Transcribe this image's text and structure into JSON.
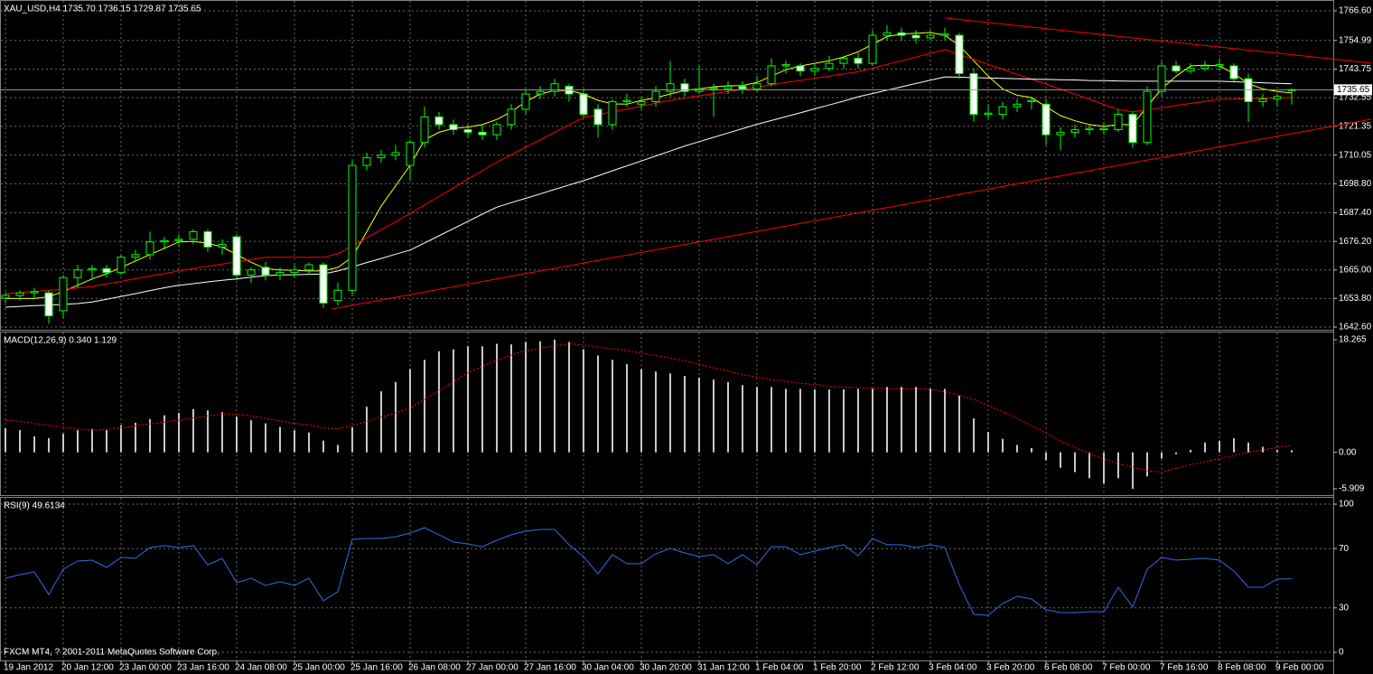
{
  "chart_data": [
    {
      "type": "candlestick",
      "title": "XAU_USD,H4 1735.70 1736.15 1729.87 1735.65",
      "categories": [
        "19 Jan 2012",
        null,
        null,
        null,
        "20 Jan 12:00",
        null,
        null,
        null,
        "23 Jan 00:00",
        null,
        null,
        null,
        "23 Jan 16:00",
        null,
        null,
        null,
        "24 Jan 08:00",
        null,
        null,
        null,
        "25 Jan 00:00",
        null,
        null,
        null,
        "25 Jan 16:00",
        null,
        null,
        null,
        "26 Jan 08:00",
        null,
        null,
        null,
        "27 Jan 00:00",
        null,
        null,
        null,
        "27 Jan 16:00",
        null,
        null,
        null,
        "30 Jan 04:00",
        null,
        null,
        null,
        "30 Jan 20:00",
        null,
        null,
        null,
        "31 Jan 12:00",
        null,
        null,
        null,
        "1 Feb 04:00",
        null,
        null,
        null,
        "1 Feb 20:00",
        null,
        null,
        null,
        "2 Feb 12:00",
        null,
        null,
        null,
        "3 Feb 04:00",
        null,
        null,
        null,
        "3 Feb 20:00",
        null,
        null,
        null,
        "6 Feb 08:00",
        null,
        null,
        null,
        "7 Feb 00:00",
        null,
        null,
        null,
        "7 Feb 16:00",
        null,
        null,
        null,
        "8 Feb 08:00",
        null,
        null,
        null,
        "9 Feb 00:00",
        null
      ],
      "open": [
        1654,
        1655,
        1656,
        1656,
        1649,
        1662,
        1665,
        1665.5,
        1664,
        1670,
        1671,
        1676,
        1676.5,
        1677,
        1680,
        1674,
        1678,
        1663,
        1666,
        1663,
        1664,
        1665,
        1667,
        1653,
        1657,
        1706,
        1709,
        1710,
        1706,
        1715,
        1725,
        1722,
        1720,
        1719,
        1718,
        1722,
        1728,
        1734,
        1735,
        1737,
        1734,
        1728,
        1722,
        1731,
        1730,
        1731,
        1735,
        1738,
        1735,
        1736,
        1736,
        1737,
        1736,
        1738,
        1745,
        1745,
        1743,
        1744,
        1746,
        1748,
        1746,
        1757,
        1758,
        1757,
        1756,
        1757,
        1757,
        1742,
        1726,
        1726,
        1729,
        1731,
        1730,
        1718,
        1719,
        1720,
        1720,
        1720,
        1726,
        1715,
        1735,
        1745,
        1743,
        1744,
        1745,
        1745,
        1740,
        1731,
        1732,
        1735.7
      ],
      "high": [
        1656,
        1657,
        1658,
        1657,
        1663,
        1667,
        1667,
        1667,
        1671,
        1673,
        1680,
        1678,
        1679,
        1681,
        1681,
        1677,
        1679,
        1666,
        1668,
        1666,
        1667,
        1668,
        1668,
        1660,
        1708,
        1711,
        1712,
        1714,
        1716,
        1729,
        1727,
        1724,
        1722,
        1722,
        1723,
        1730,
        1736,
        1737,
        1740,
        1738,
        1736,
        1730,
        1732,
        1734,
        1733,
        1737,
        1747,
        1740,
        1745,
        1738,
        1739,
        1739,
        1741,
        1748,
        1747,
        1746,
        1746,
        1749,
        1749,
        1750,
        1759,
        1761,
        1760,
        1759,
        1759,
        1760,
        1758,
        1744,
        1730,
        1731,
        1732,
        1733,
        1732,
        1721,
        1722,
        1722,
        1723,
        1728,
        1727,
        1737,
        1747,
        1747,
        1746,
        1747,
        1748,
        1746,
        1742,
        1734,
        1734,
        1736.15
      ],
      "low": [
        1652,
        1653,
        1654,
        1644,
        1646,
        1658,
        1661,
        1662,
        1663,
        1668,
        1669,
        1673,
        1674,
        1675,
        1672,
        1671,
        1661,
        1660,
        1661,
        1661,
        1662,
        1663,
        1650,
        1651,
        1655,
        1704,
        1707,
        1708,
        1700,
        1713,
        1720,
        1718,
        1717,
        1716,
        1716,
        1720,
        1726,
        1732,
        1733,
        1731,
        1725,
        1717,
        1720,
        1729,
        1728,
        1729,
        1733,
        1733,
        1734,
        1725,
        1734,
        1734,
        1735,
        1737,
        1742,
        1741,
        1741,
        1743,
        1744,
        1744,
        1745,
        1755,
        1755,
        1754,
        1755,
        1755,
        1740,
        1723,
        1724,
        1724,
        1727,
        1728,
        1714,
        1712,
        1717,
        1718,
        1718,
        1719,
        1713,
        1714,
        1733,
        1742,
        1742,
        1743,
        1743,
        1739,
        1723,
        1729,
        1729,
        1729.87
      ],
      "close": [
        1655,
        1656,
        1656.5,
        1647,
        1662,
        1665,
        1665.5,
        1664,
        1670,
        1671,
        1676,
        1676.5,
        1677,
        1680,
        1674,
        1675,
        1663,
        1665,
        1663,
        1664,
        1665,
        1667,
        1652,
        1657,
        1706,
        1709,
        1710,
        1711,
        1715,
        1725,
        1722,
        1720,
        1719,
        1718,
        1722,
        1728,
        1734,
        1735,
        1738,
        1734,
        1726,
        1722,
        1731,
        1731.5,
        1731,
        1735,
        1738,
        1735,
        1736,
        1736.5,
        1737,
        1736,
        1738,
        1745,
        1745.5,
        1743,
        1744,
        1746,
        1748,
        1746,
        1757,
        1758,
        1757,
        1756,
        1757,
        1757.5,
        1742,
        1726,
        1726.5,
        1729,
        1730,
        1731.5,
        1718,
        1719,
        1720,
        1720.5,
        1720.5,
        1726,
        1715,
        1735,
        1745,
        1743,
        1744,
        1745,
        1745.5,
        1740,
        1731,
        1732,
        1733,
        1735.65
      ],
      "up_color": "#000000",
      "down_color": "#ffffff",
      "wick_color": "#00ff00",
      "series": [
        {
          "color": "#ffff00",
          "values": [
            1653.8,
            1653.8,
            1653.8,
            1654.5,
            1656.5,
            1659,
            1661.5,
            1663.5,
            1666,
            1668.5,
            1671,
            1673.5,
            1676,
            1676.2,
            1675.5,
            1674,
            1671,
            1668,
            1665.5,
            1665,
            1664.8,
            1664.6,
            1664.6,
            1666,
            1670,
            1680,
            1690,
            1698,
            1706,
            1716,
            1719,
            1720.5,
            1721,
            1722,
            1724,
            1727,
            1731,
            1734,
            1735.4,
            1735.4,
            1734,
            1731.5,
            1730.1,
            1730,
            1731.5,
            1732.5,
            1734,
            1735.4,
            1736,
            1736.8,
            1737.2,
            1737.3,
            1738.5,
            1741,
            1743.5,
            1745,
            1746,
            1747,
            1748.5,
            1750.5,
            1753.5,
            1756.5,
            1757.5,
            1757.8,
            1758.1,
            1757,
            1753,
            1747,
            1741,
            1736,
            1733.5,
            1732.6,
            1729,
            1725.5,
            1723.5,
            1722,
            1721.3,
            1722,
            1722,
            1729,
            1736,
            1741,
            1745,
            1745.3,
            1745,
            1742,
            1738,
            1736,
            1735,
            1734.4
          ]
        },
        {
          "color": "#ff0000",
          "values": [
            1655.7,
            1656.1,
            1656.6,
            1657.0,
            1657.4,
            1657.9,
            1658.5,
            1659.5,
            1660.5,
            1661.6,
            1662.6,
            1663.6,
            1664.6,
            1665.5,
            1666.4,
            1667.3,
            1668.2,
            1669.1,
            1670.0,
            1670.0,
            1670.0,
            1670.0,
            1670.0,
            1671.3,
            1674.4,
            1677.6,
            1680.8,
            1683.9,
            1687.1,
            1690.5,
            1693.8,
            1697.2,
            1700.6,
            1703.9,
            1707.3,
            1710.2,
            1713.1,
            1716.0,
            1719.0,
            1721.9,
            1724.8,
            1725.9,
            1727.0,
            1728.1,
            1729.2,
            1730.4,
            1731.5,
            1732.4,
            1733.3,
            1734.1,
            1735.0,
            1735.8,
            1736.7,
            1737.6,
            1738.5,
            1739.3,
            1740.2,
            1741.0,
            1741.9,
            1742.7,
            1744.1,
            1745.6,
            1747.0,
            1748.5,
            1749.9,
            1751.4,
            1749.5,
            1747.5,
            1745.6,
            1743.7,
            1741.7,
            1739.8,
            1737.9,
            1735.9,
            1733.9,
            1731.9,
            1729.9,
            1727.9,
            1727.0,
            1727.8,
            1728.6,
            1729.5,
            1730.3,
            1731.1,
            1731.9,
            1732.0,
            1732.2,
            1732.3,
            1732.4,
            1732.6
          ]
        },
        {
          "color": "#ffffff",
          "values": [
            1650.4,
            1650.7,
            1651.0,
            1651.2,
            1651.5,
            1651.8,
            1652.4,
            1653.5,
            1654.6,
            1655.7,
            1656.9,
            1658.0,
            1659.0,
            1659.6,
            1660.3,
            1660.9,
            1661.5,
            1662.2,
            1662.8,
            1663.0,
            1663.1,
            1663.3,
            1663.4,
            1664.6,
            1666.2,
            1667.9,
            1669.5,
            1671.2,
            1672.8,
            1675.6,
            1678.4,
            1681.2,
            1684.0,
            1686.9,
            1689.6,
            1691.4,
            1693.1,
            1694.8,
            1696.6,
            1698.3,
            1700.0,
            1701.9,
            1703.9,
            1705.8,
            1707.7,
            1709.7,
            1711.6,
            1713.6,
            1715.3,
            1717.0,
            1718.7,
            1720.4,
            1722.1,
            1723.6,
            1725.1,
            1726.6,
            1728.2,
            1729.7,
            1731.2,
            1732.9,
            1734.2,
            1735.5,
            1736.8,
            1738.1,
            1739.4,
            1740.7,
            1740.6,
            1740.4,
            1740.3,
            1740.1,
            1740.0,
            1739.8,
            1739.7,
            1739.6,
            1739.5,
            1739.3,
            1739.2,
            1739.1,
            1739.0,
            1739.0,
            1739.0,
            1739.0,
            1739.0,
            1739.0,
            1739.0,
            1738.8,
            1738.6,
            1738.4,
            1738.2,
            1738.0
          ]
        }
      ],
      "trendlines": [
        {
          "color": "#ff0000",
          "x": [
            22.6,
            94.5
          ],
          "y": [
            1649.7,
            1724.1
          ]
        },
        {
          "color": "#ff0000",
          "x": [
            65,
            94.5
          ],
          "y": [
            1763.8,
            1746.1
          ]
        }
      ],
      "price_line": {
        "value": 1735.65,
        "label": "1735.65"
      },
      "ylim": [
        1642.6,
        1766.6
      ],
      "yticks": [
        {
          "value": 1766.6,
          "label": "1766.60"
        },
        {
          "value": 1754.99,
          "label": "1754.99"
        },
        {
          "value": 1743.75,
          "label": "1743.75"
        },
        {
          "value": 1732.55,
          "label": "1732.55"
        },
        {
          "value": 1721.35,
          "label": "1721.35"
        },
        {
          "value": 1710.05,
          "label": "1710.05"
        },
        {
          "value": 1698.8,
          "label": "1698.80"
        },
        {
          "value": 1687.4,
          "label": "1687.40"
        },
        {
          "value": 1676.2,
          "label": "1676.20"
        },
        {
          "value": 1665.0,
          "label": "1665.00"
        },
        {
          "value": 1653.8,
          "label": "1653.80"
        },
        {
          "value": 1642.6,
          "label": "1642.60"
        }
      ],
      "grid": true
    },
    {
      "type": "macd",
      "title": "MACD(12,26,9) 0.340 1.129",
      "values": [
        3.9,
        3.6,
        2.6,
        2.3,
        3.0,
        3.6,
        3.8,
        3.6,
        4.4,
        4.8,
        5.4,
        6.0,
        6.4,
        7.0,
        6.8,
        6.5,
        5.8,
        5.2,
        4.7,
        4.1,
        3.6,
        3.2,
        1.9,
        1.2,
        4.1,
        7.4,
        9.9,
        11.4,
        13.5,
        15.0,
        16.4,
        16.7,
        17.2,
        17.2,
        17.6,
        17.5,
        17.9,
        18.0,
        18.265,
        17.9,
        16.7,
        15.7,
        15.0,
        14.3,
        13.5,
        13.1,
        12.8,
        12.4,
        12.1,
        11.8,
        11.4,
        10.9,
        10.6,
        10.6,
        10.3,
        10.3,
        10.2,
        10.2,
        10.2,
        10.3,
        10.3,
        10.6,
        10.6,
        10.6,
        10.3,
        10.3,
        9.2,
        5.5,
        3.3,
        2.2,
        1.2,
        0.7,
        -1.3,
        -2.5,
        -3.2,
        -4.2,
        -5.1,
        -4.2,
        -5.909,
        -3.9,
        -1.0,
        -0.3,
        0.4,
        1.6,
        1.9,
        2.3,
        1.6,
        0.9,
        0.4,
        0.34
      ],
      "color": "#c8c8c8",
      "signal": {
        "color": "#ff0000",
        "values": [
          5.2,
          5.0,
          4.7,
          4.4,
          4.1,
          3.8,
          3.6,
          3.7,
          4.0,
          4.3,
          4.6,
          4.9,
          5.2,
          5.6,
          5.9,
          6.2,
          6.2,
          5.9,
          5.5,
          5.1,
          4.7,
          4.4,
          4.0,
          3.8,
          4.3,
          5.0,
          5.7,
          6.4,
          7.2,
          8.6,
          10.0,
          11.5,
          12.9,
          14.0,
          14.9,
          15.8,
          16.5,
          16.9,
          17.3,
          17.6,
          17.4,
          17.1,
          16.8,
          16.5,
          16.1,
          15.7,
          15.3,
          14.8,
          14.3,
          13.7,
          13.2,
          12.6,
          12.2,
          11.8,
          11.5,
          11.2,
          11.0,
          10.7,
          10.6,
          10.5,
          10.4,
          10.3,
          10.3,
          10.3,
          10.2,
          9.8,
          9.3,
          8.6,
          7.6,
          6.6,
          5.5,
          4.3,
          3.1,
          1.8,
          0.8,
          -0.2,
          -1.1,
          -1.8,
          -2.4,
          -3.0,
          -3.2,
          -2.6,
          -2.0,
          -1.5,
          -1.0,
          -0.5,
          0.0,
          0.4,
          0.8,
          1.129
        ]
      },
      "ylim": [
        -5.909,
        18.265
      ],
      "yticks": [
        18.265,
        {
          "value": 0,
          "label": "0.00"
        },
        -5.909
      ],
      "grid": false
    },
    {
      "type": "line",
      "title": "RSI(9) 49.6134",
      "values": [
        50.0,
        52.4,
        54.3,
        39.0,
        56.1,
        61.6,
        62.2,
        57.3,
        64.0,
        63.4,
        70.7,
        72.0,
        70.7,
        72.0,
        59.1,
        63.4,
        47.0,
        50.0,
        45.1,
        47.6,
        45.1,
        50.0,
        34.8,
        40.9,
        76.2,
        76.8,
        76.8,
        78.0,
        80.5,
        84.1,
        79.3,
        74.4,
        73.2,
        71.3,
        75.6,
        79.3,
        81.7,
        82.9,
        82.9,
        72.6,
        64.6,
        53.0,
        65.9,
        59.8,
        59.8,
        66.5,
        70.1,
        67.1,
        64.6,
        65.9,
        59.8,
        65.9,
        59.1,
        71.3,
        71.3,
        65.9,
        68.3,
        70.7,
        72.6,
        65.2,
        76.8,
        72.6,
        72.6,
        70.7,
        72.6,
        70.7,
        45.7,
        25.6,
        25.0,
        32.9,
        37.8,
        36.0,
        28.7,
        26.8,
        26.8,
        27.4,
        27.4,
        43.9,
        30.5,
        56.1,
        64.0,
        62.2,
        62.8,
        63.4,
        62.2,
        54.9,
        43.9,
        43.9,
        49.4,
        49.6134
      ],
      "color": "#2f6fe0",
      "ylim": [
        0,
        100
      ],
      "yticks": [
        100,
        70,
        30,
        0
      ],
      "grid": true,
      "annotation": "FXCM MT4, ? 2001-2011 MetaQuotes Software Corp."
    }
  ]
}
